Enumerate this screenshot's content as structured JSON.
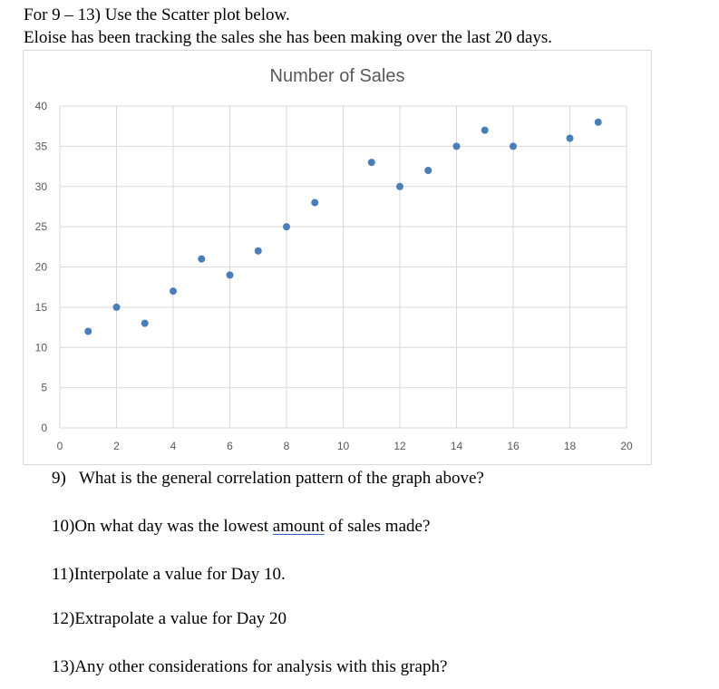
{
  "intro": {
    "line1": "For 9 – 13) Use the Scatter plot below.",
    "line2": "Eloise has been tracking the sales she has been making over the last 20 days."
  },
  "chart_data": {
    "type": "scatter",
    "title": "Number of Sales",
    "xlabel": "",
    "ylabel": "",
    "xlim": [
      0,
      20
    ],
    "ylim": [
      0,
      40
    ],
    "xticks": [
      0,
      2,
      4,
      6,
      8,
      10,
      12,
      14,
      16,
      18,
      20
    ],
    "yticks": [
      0,
      5,
      10,
      15,
      20,
      25,
      30,
      35,
      40
    ],
    "grid": true,
    "marker_color": "#4a7ebb",
    "points": [
      {
        "x": 1,
        "y": 12
      },
      {
        "x": 2,
        "y": 15
      },
      {
        "x": 3,
        "y": 13
      },
      {
        "x": 4,
        "y": 17
      },
      {
        "x": 5,
        "y": 21
      },
      {
        "x": 6,
        "y": 19
      },
      {
        "x": 7,
        "y": 22
      },
      {
        "x": 8,
        "y": 25
      },
      {
        "x": 9,
        "y": 28
      },
      {
        "x": 11,
        "y": 33
      },
      {
        "x": 12,
        "y": 30
      },
      {
        "x": 13,
        "y": 32
      },
      {
        "x": 14,
        "y": 35
      },
      {
        "x": 15,
        "y": 37
      },
      {
        "x": 16,
        "y": 35
      },
      {
        "x": 18,
        "y": 36
      },
      {
        "x": 19,
        "y": 38
      }
    ]
  },
  "questions": [
    {
      "number": "9)",
      "text": "What is the general correlation pattern of the graph above?"
    },
    {
      "number": "10)",
      "pre": "On what day was the lowest ",
      "underlined": "amount",
      "post": " of sales made?"
    },
    {
      "number": "11)",
      "text": "Interpolate a value for Day 10."
    },
    {
      "number": "12)",
      "text": "Extrapolate a value for Day 20"
    },
    {
      "number": "13)",
      "text": "Any other considerations for analysis with this graph?"
    }
  ]
}
